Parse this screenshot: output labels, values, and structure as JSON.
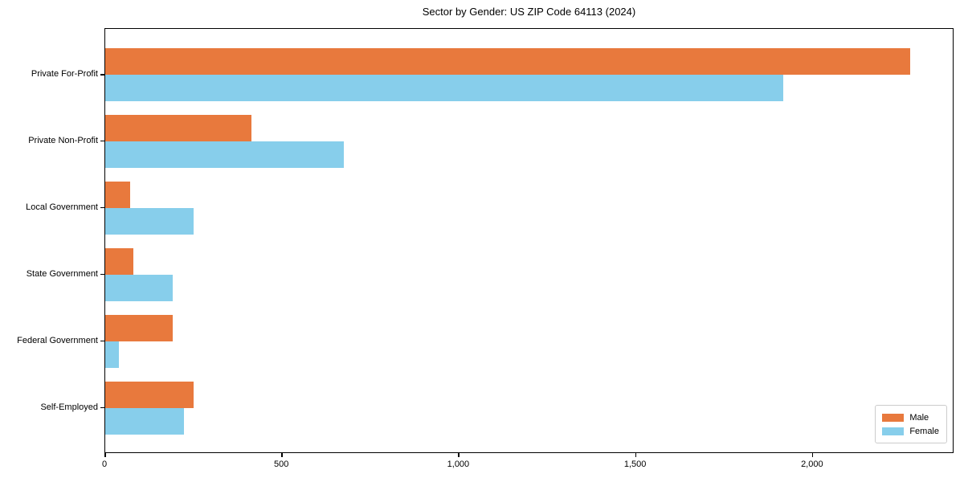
{
  "chart_data": {
    "type": "bar",
    "orientation": "horizontal",
    "title": "Sector by Gender: US ZIP Code 64113 (2024)",
    "categories": [
      "Private For-Profit",
      "Private Non-Profit",
      "Local Government",
      "State Government",
      "Federal Government",
      "Self-Employed"
    ],
    "series": [
      {
        "name": "Male",
        "color": "#e8793d",
        "values": [
          2280,
          415,
          70,
          80,
          190,
          250
        ]
      },
      {
        "name": "Female",
        "color": "#87ceeb",
        "values": [
          1920,
          675,
          250,
          190,
          38,
          222
        ]
      }
    ],
    "xlabel": "",
    "ylabel": "",
    "xlim": [
      0,
      2400
    ],
    "xticks": [
      0,
      500,
      1000,
      1500,
      2000
    ],
    "xtick_labels": [
      "0",
      "500",
      "1,000",
      "1,500",
      "2,000"
    ],
    "grid": false,
    "legend": {
      "position": "lower-right",
      "entries": [
        "Male",
        "Female"
      ]
    },
    "axis_color": "#000000",
    "background_color": "#ffffff"
  }
}
